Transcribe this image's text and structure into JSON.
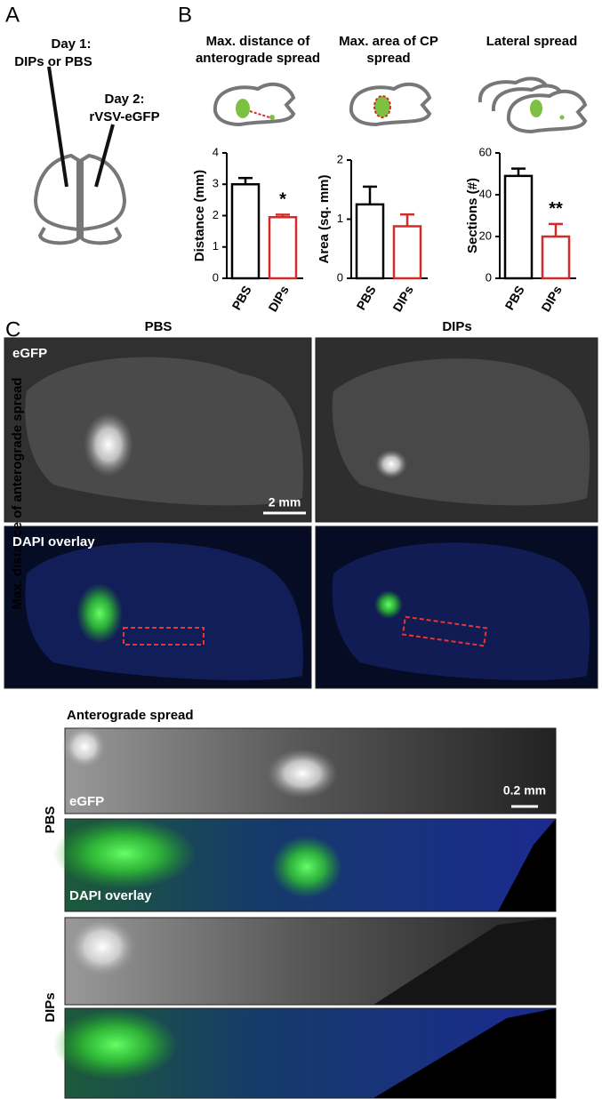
{
  "panels": {
    "a": "A",
    "b": "B",
    "c": "C"
  },
  "panel_a": {
    "day1_label": "Day 1:",
    "day1_text": "DIPs or PBS",
    "day2_label": "Day 2:",
    "day2_text": "rVSV-eGFP"
  },
  "chart_data": [
    {
      "type": "bar",
      "title": "Max. distance of anterograde spread",
      "y_label": "Distance (mm)",
      "categories": [
        "PBS",
        "DIPs"
      ],
      "values": [
        3.0,
        1.95
      ],
      "errors": [
        0.2,
        0.08
      ],
      "colors": [
        "#000000",
        "#d42a2a"
      ],
      "ylim": [
        0,
        4
      ],
      "yticks": [
        0,
        1,
        2,
        3,
        4
      ],
      "annotation": "*"
    },
    {
      "type": "bar",
      "title": "Max. area of CP spread",
      "y_label": "Area (sq. mm)",
      "categories": [
        "PBS",
        "DIPs"
      ],
      "values": [
        1.25,
        0.88
      ],
      "errors": [
        0.3,
        0.2
      ],
      "colors": [
        "#000000",
        "#d42a2a"
      ],
      "ylim": [
        0,
        2
      ],
      "yticks": [
        0,
        1,
        2
      ]
    },
    {
      "type": "bar",
      "title": "Lateral spread",
      "y_label": "Sections (#)",
      "categories": [
        "PBS",
        "DIPs"
      ],
      "values": [
        49,
        20
      ],
      "errors": [
        3.5,
        6
      ],
      "colors": [
        "#000000",
        "#d42a2a"
      ],
      "ylim": [
        0,
        60
      ],
      "yticks": [
        0,
        20,
        40,
        60
      ],
      "annotation": "**"
    }
  ],
  "panel_c": {
    "column_headers": [
      "PBS",
      "DIPs"
    ],
    "row_title": "Max. distance of anterograde spread",
    "egfp_label": "eGFP",
    "dapi_label": "DAPI overlay",
    "scale_bar": "2 mm",
    "detail_title": "Anterograde spread",
    "detail_scale_bar": "0.2 mm",
    "detail_egfp_label": "eGFP",
    "detail_dapi_label": "DAPI overlay",
    "detail_rows": [
      "PBS",
      "DIPs"
    ]
  }
}
